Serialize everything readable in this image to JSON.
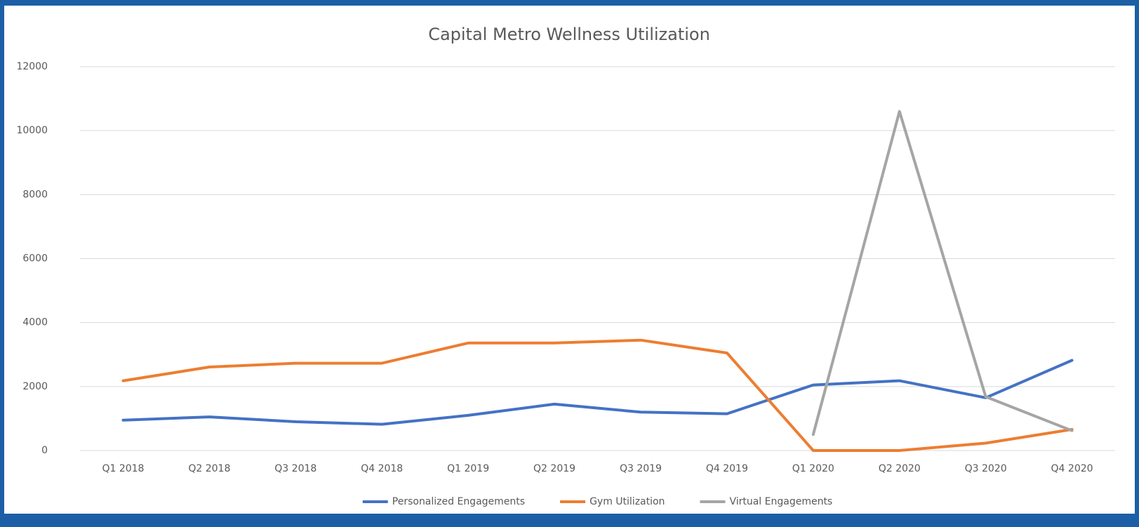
{
  "chart_data": {
    "type": "line",
    "title": "Capital Metro Wellness Utilization",
    "categories": [
      "Q1 2018",
      "Q2 2018",
      "Q3 2018",
      "Q4 2018",
      "Q1 2019",
      "Q2 2019",
      "Q3 2019",
      "Q4 2019",
      "Q1 2020",
      "Q2 2020",
      "Q3 2020",
      "Q4 2020"
    ],
    "series": [
      {
        "name": "Personalized Engagements",
        "color": "#4472c4",
        "values": [
          950,
          1050,
          900,
          820,
          1100,
          1450,
          1200,
          1150,
          2050,
          2180,
          1650,
          2820
        ]
      },
      {
        "name": "Gym Utilization",
        "color": "#ed7d31",
        "values": [
          2180,
          2610,
          2730,
          2730,
          3360,
          3360,
          3450,
          3050,
          0,
          0,
          230,
          660
        ]
      },
      {
        "name": "Virtual Engagements",
        "color": "#a5a5a5",
        "values": [
          null,
          null,
          null,
          null,
          null,
          null,
          null,
          null,
          500,
          10600,
          1680,
          620
        ]
      }
    ],
    "ylim": [
      0,
      12000
    ],
    "yticks": [
      0,
      2000,
      4000,
      6000,
      8000,
      10000,
      12000
    ],
    "grid": true,
    "legend": "bottom"
  }
}
